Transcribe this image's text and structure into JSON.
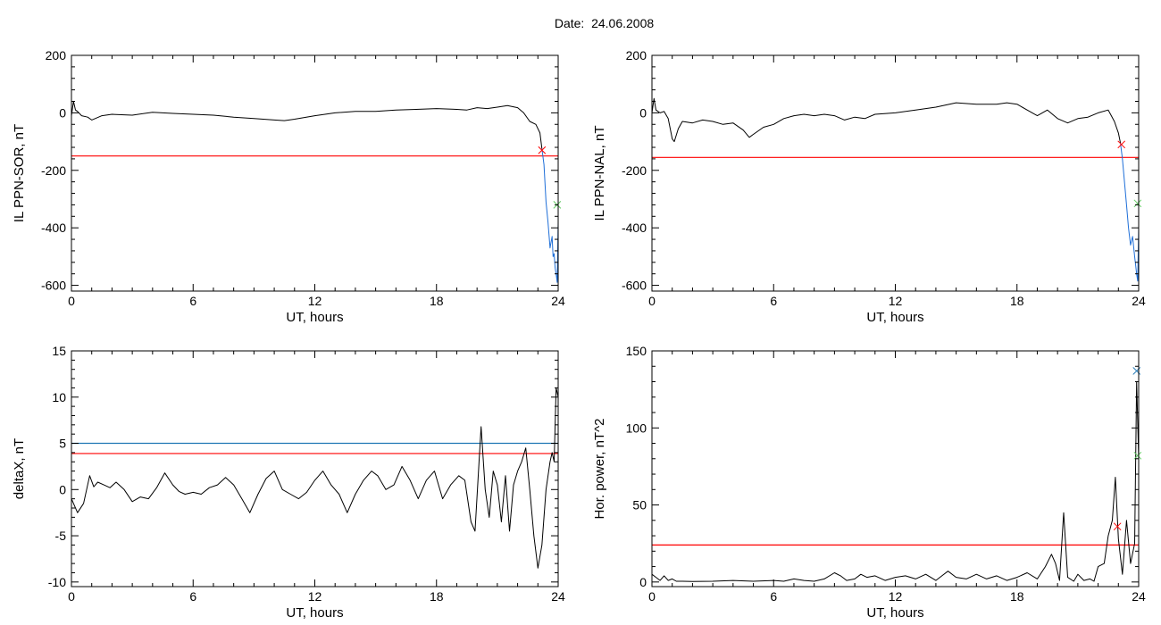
{
  "page": {
    "title": "Date:  24.06.2008"
  },
  "colors": {
    "trace": "#000000",
    "threshold": "#ff0000",
    "threshold2": "#1f77b4",
    "fit": "#1f6fd8",
    "marker_green": "#66cc66"
  },
  "chart_data": [
    {
      "id": "ppn-sor",
      "type": "line",
      "title": "",
      "xlabel": "UT, hours",
      "ylabel": "IL PPN-SOR, nT",
      "xlim": [
        0,
        24
      ],
      "ylim": [
        -620,
        200
      ],
      "xticks": [
        0,
        6,
        12,
        18,
        24
      ],
      "yticks": [
        -600,
        -400,
        -200,
        0,
        200
      ],
      "series": [
        {
          "color": "#000000",
          "x": [
            0,
            0.1,
            0.2,
            0.3,
            0.5,
            0.8,
            1,
            1.5,
            2,
            3,
            4,
            5,
            6,
            7,
            8,
            9,
            10,
            10.5,
            11,
            12,
            13,
            14,
            15,
            16,
            17,
            18,
            19,
            19.5,
            20,
            20.5,
            21,
            21.5,
            22,
            22.3,
            22.6,
            22.9,
            23.1,
            23.2
          ],
          "y": [
            -10,
            40,
            10,
            5,
            -10,
            -15,
            -25,
            -10,
            -5,
            -8,
            2,
            -2,
            -5,
            -8,
            -15,
            -20,
            -25,
            -27,
            -22,
            -10,
            0,
            5,
            5,
            10,
            12,
            15,
            12,
            10,
            18,
            15,
            20,
            25,
            18,
            0,
            -30,
            -40,
            -70,
            -125
          ]
        },
        {
          "color": "#1f6fd8",
          "x": [
            23.2,
            23.3,
            23.4,
            23.5,
            23.6,
            23.7,
            23.75,
            23.8,
            23.85,
            23.9,
            23.95,
            24
          ],
          "y": [
            -125,
            -180,
            -310,
            -380,
            -470,
            -430,
            -500,
            -490,
            -540,
            -560,
            -590,
            -380
          ]
        }
      ],
      "hlines": [
        {
          "y": -150,
          "color": "#ff0000"
        }
      ],
      "markers": [
        {
          "x": 23.2,
          "y": -130,
          "color": "#ff0000"
        },
        {
          "x": 23.95,
          "y": -320,
          "color": "#66cc66"
        }
      ]
    },
    {
      "id": "ppn-nal",
      "type": "line",
      "title": "",
      "xlabel": "UT, hours",
      "ylabel": "IL PPN-NAL, nT",
      "xlim": [
        0,
        24
      ],
      "ylim": [
        -620,
        200
      ],
      "xticks": [
        0,
        6,
        12,
        18,
        24
      ],
      "yticks": [
        -600,
        -400,
        -200,
        0,
        200
      ],
      "series": [
        {
          "color": "#000000",
          "x": [
            0,
            0.1,
            0.2,
            0.4,
            0.6,
            0.8,
            1,
            1.1,
            1.3,
            1.5,
            2,
            2.5,
            3,
            3.5,
            4,
            4.5,
            4.8,
            5,
            5.5,
            6,
            6.5,
            7,
            7.5,
            8,
            8.5,
            9,
            9.5,
            10,
            10.5,
            11,
            12,
            13,
            14,
            15,
            16,
            17,
            17.5,
            18,
            18.5,
            19,
            19.5,
            20,
            20.5,
            21,
            21.5,
            22,
            22.5,
            22.8,
            23,
            23.1
          ],
          "y": [
            0,
            50,
            10,
            0,
            5,
            -20,
            -90,
            -100,
            -55,
            -30,
            -35,
            -25,
            -30,
            -40,
            -35,
            -60,
            -85,
            -75,
            -50,
            -40,
            -20,
            -10,
            -5,
            -10,
            -5,
            -10,
            -25,
            -15,
            -20,
            -5,
            0,
            10,
            20,
            35,
            30,
            30,
            35,
            30,
            10,
            -10,
            10,
            -20,
            -35,
            -20,
            -15,
            0,
            10,
            -30,
            -70,
            -105
          ]
        },
        {
          "color": "#1f6fd8",
          "x": [
            23.1,
            23.2,
            23.3,
            23.4,
            23.5,
            23.6,
            23.7,
            23.8,
            23.85,
            23.9,
            23.95,
            24
          ],
          "y": [
            -105,
            -160,
            -240,
            -320,
            -400,
            -460,
            -430,
            -500,
            -530,
            -560,
            -585,
            -400
          ]
        }
      ],
      "hlines": [
        {
          "y": -155,
          "color": "#ff0000"
        }
      ],
      "markers": [
        {
          "x": 23.15,
          "y": -110,
          "color": "#ff0000"
        },
        {
          "x": 23.95,
          "y": -315,
          "color": "#66cc66"
        }
      ]
    },
    {
      "id": "deltax",
      "type": "line",
      "title": "",
      "xlabel": "UT, hours",
      "ylabel": "deltaX, nT",
      "xlim": [
        0,
        24
      ],
      "ylim": [
        -10.5,
        15
      ],
      "xticks": [
        0,
        6,
        12,
        18,
        24
      ],
      "yticks": [
        -10,
        -5,
        0,
        5,
        10,
        15
      ],
      "series": [
        {
          "color": "#000000",
          "x": [
            0,
            0.3,
            0.6,
            0.9,
            1.1,
            1.3,
            1.6,
            1.9,
            2.2,
            2.6,
            3.0,
            3.4,
            3.8,
            4.2,
            4.6,
            5.0,
            5.3,
            5.6,
            6.0,
            6.4,
            6.8,
            7.2,
            7.6,
            8.0,
            8.4,
            8.8,
            9.2,
            9.6,
            10.0,
            10.4,
            10.8,
            11.2,
            11.6,
            12.0,
            12.4,
            12.8,
            13.2,
            13.6,
            14.0,
            14.4,
            14.8,
            15.1,
            15.5,
            15.9,
            16.3,
            16.7,
            17.1,
            17.5,
            17.9,
            18.3,
            18.7,
            19.1,
            19.4,
            19.7,
            19.9,
            20.1,
            20.2,
            20.4,
            20.6,
            20.8,
            21.0,
            21.2,
            21.4,
            21.6,
            21.8,
            22.0,
            22.2,
            22.4,
            22.6,
            22.8,
            23.0,
            23.2,
            23.4,
            23.6,
            23.7,
            23.8,
            23.9,
            24.0
          ],
          "y": [
            -1,
            -2.5,
            -1.5,
            1.5,
            0.3,
            0.8,
            0.5,
            0.2,
            0.8,
            0,
            -1.3,
            -0.8,
            -1,
            0.2,
            1.8,
            0.5,
            -0.2,
            -0.5,
            -0.3,
            -0.5,
            0.2,
            0.5,
            1.3,
            0.5,
            -1,
            -2.5,
            -0.5,
            1.2,
            2,
            0,
            -0.5,
            -1,
            -0.3,
            1,
            2,
            0.5,
            -0.5,
            -2.5,
            -0.5,
            1,
            2,
            1.5,
            0,
            0.5,
            2.5,
            1,
            -1,
            1,
            2,
            -1,
            0.5,
            1.5,
            1,
            -3.5,
            -4.5,
            3,
            6.8,
            0,
            -3,
            2,
            0.5,
            -3.5,
            1.5,
            -4.5,
            0.5,
            2,
            3,
            4.5,
            0,
            -5,
            -8.5,
            -6,
            0,
            3,
            4,
            3,
            11,
            10
          ]
        }
      ],
      "hlines": [
        {
          "y": 5,
          "color": "#1f77b4"
        },
        {
          "y": 3.9,
          "color": "#ff0000"
        }
      ],
      "markers": []
    },
    {
      "id": "hor-power",
      "type": "line",
      "title": "",
      "xlabel": "UT, hours",
      "ylabel": "Hor. power, nT^2",
      "xlim": [
        0,
        24
      ],
      "ylim": [
        -3,
        150
      ],
      "xticks": [
        0,
        6,
        12,
        18,
        24
      ],
      "yticks": [
        0,
        50,
        100,
        150
      ],
      "series": [
        {
          "color": "#000000",
          "x": [
            0,
            0.2,
            0.4,
            0.6,
            0.8,
            1.0,
            1.2,
            1.5,
            2,
            3,
            4,
            5,
            6,
            6.5,
            7,
            7.5,
            8,
            8.5,
            9,
            9.3,
            9.6,
            10,
            10.3,
            10.6,
            11,
            11.5,
            12,
            12.5,
            13,
            13.5,
            14,
            14.3,
            14.6,
            15,
            15.5,
            16,
            16.5,
            17,
            17.5,
            18,
            18.5,
            19,
            19.4,
            19.7,
            19.9,
            20.1,
            20.3,
            20.5,
            20.8,
            21.0,
            21.3,
            21.6,
            21.8,
            22.0,
            22.3,
            22.5,
            22.7,
            22.85,
            23.0,
            23.2,
            23.4,
            23.6,
            23.8,
            23.9,
            24.0
          ],
          "y": [
            5,
            3,
            1,
            4,
            1,
            2,
            0.5,
            0.5,
            0.3,
            0.5,
            1,
            0.5,
            1,
            0.5,
            2,
            1,
            0.5,
            2,
            6,
            4,
            1,
            2,
            5,
            3,
            4,
            1,
            3,
            4,
            2,
            5,
            1,
            4,
            7,
            3,
            2,
            5,
            2,
            4,
            1,
            3,
            6,
            2,
            10,
            18,
            12,
            1,
            45,
            3,
            0.5,
            5,
            1,
            2,
            0.5,
            10,
            12,
            30,
            40,
            68,
            28,
            5,
            40,
            12,
            25,
            130,
            80
          ]
        }
      ],
      "hlines": [
        {
          "y": 24,
          "color": "#ff0000"
        }
      ],
      "markers": [
        {
          "x": 23.9,
          "y": 137,
          "color": "#1f77b4"
        },
        {
          "x": 23.95,
          "y": 82,
          "color": "#66cc66"
        },
        {
          "x": 22.95,
          "y": 36,
          "color": "#ff0000"
        }
      ]
    }
  ]
}
